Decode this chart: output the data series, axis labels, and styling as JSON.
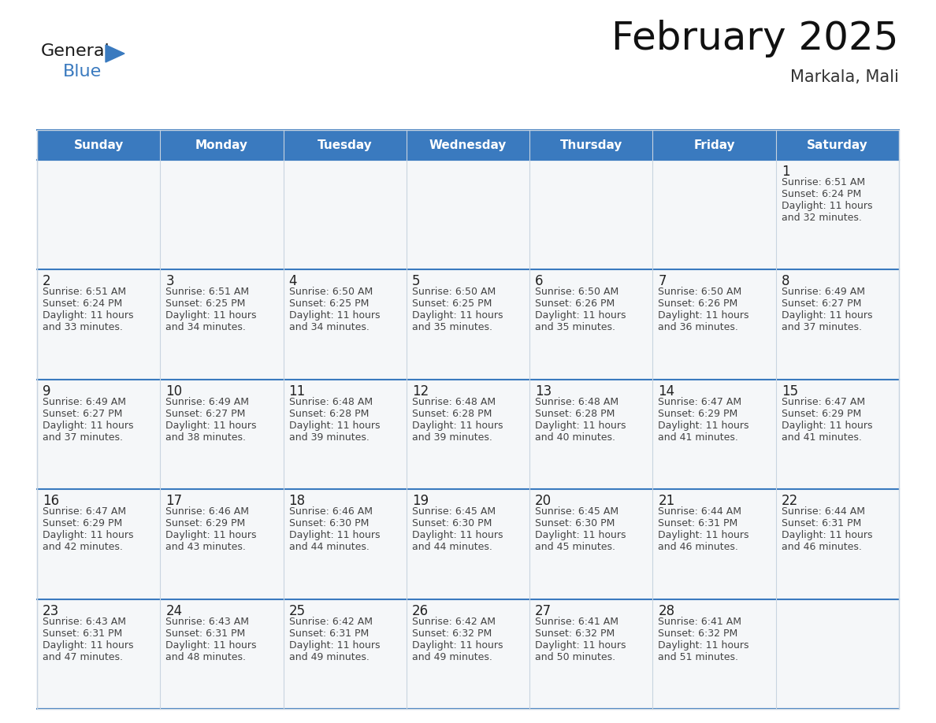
{
  "title": "February 2025",
  "subtitle": "Markala, Mali",
  "header_color": "#3a7abf",
  "header_text_color": "#ffffff",
  "day_names": [
    "Sunday",
    "Monday",
    "Tuesday",
    "Wednesday",
    "Thursday",
    "Friday",
    "Saturday"
  ],
  "cell_bg_even": "#f0f4f8",
  "cell_bg_odd": "#ffffff",
  "border_color": "#3a7abf",
  "vert_line_color": "#c8d4e0",
  "number_color": "#222222",
  "text_color": "#444444",
  "days": [
    {
      "day": 1,
      "col": 6,
      "row": 0,
      "sunrise": "6:51 AM",
      "sunset": "6:24 PM",
      "daylight": "11 hours and 32 minutes."
    },
    {
      "day": 2,
      "col": 0,
      "row": 1,
      "sunrise": "6:51 AM",
      "sunset": "6:24 PM",
      "daylight": "11 hours and 33 minutes."
    },
    {
      "day": 3,
      "col": 1,
      "row": 1,
      "sunrise": "6:51 AM",
      "sunset": "6:25 PM",
      "daylight": "11 hours and 34 minutes."
    },
    {
      "day": 4,
      "col": 2,
      "row": 1,
      "sunrise": "6:50 AM",
      "sunset": "6:25 PM",
      "daylight": "11 hours and 34 minutes."
    },
    {
      "day": 5,
      "col": 3,
      "row": 1,
      "sunrise": "6:50 AM",
      "sunset": "6:25 PM",
      "daylight": "11 hours and 35 minutes."
    },
    {
      "day": 6,
      "col": 4,
      "row": 1,
      "sunrise": "6:50 AM",
      "sunset": "6:26 PM",
      "daylight": "11 hours and 35 minutes."
    },
    {
      "day": 7,
      "col": 5,
      "row": 1,
      "sunrise": "6:50 AM",
      "sunset": "6:26 PM",
      "daylight": "11 hours and 36 minutes."
    },
    {
      "day": 8,
      "col": 6,
      "row": 1,
      "sunrise": "6:49 AM",
      "sunset": "6:27 PM",
      "daylight": "11 hours and 37 minutes."
    },
    {
      "day": 9,
      "col": 0,
      "row": 2,
      "sunrise": "6:49 AM",
      "sunset": "6:27 PM",
      "daylight": "11 hours and 37 minutes."
    },
    {
      "day": 10,
      "col": 1,
      "row": 2,
      "sunrise": "6:49 AM",
      "sunset": "6:27 PM",
      "daylight": "11 hours and 38 minutes."
    },
    {
      "day": 11,
      "col": 2,
      "row": 2,
      "sunrise": "6:48 AM",
      "sunset": "6:28 PM",
      "daylight": "11 hours and 39 minutes."
    },
    {
      "day": 12,
      "col": 3,
      "row": 2,
      "sunrise": "6:48 AM",
      "sunset": "6:28 PM",
      "daylight": "11 hours and 39 minutes."
    },
    {
      "day": 13,
      "col": 4,
      "row": 2,
      "sunrise": "6:48 AM",
      "sunset": "6:28 PM",
      "daylight": "11 hours and 40 minutes."
    },
    {
      "day": 14,
      "col": 5,
      "row": 2,
      "sunrise": "6:47 AM",
      "sunset": "6:29 PM",
      "daylight": "11 hours and 41 minutes."
    },
    {
      "day": 15,
      "col": 6,
      "row": 2,
      "sunrise": "6:47 AM",
      "sunset": "6:29 PM",
      "daylight": "11 hours and 41 minutes."
    },
    {
      "day": 16,
      "col": 0,
      "row": 3,
      "sunrise": "6:47 AM",
      "sunset": "6:29 PM",
      "daylight": "11 hours and 42 minutes."
    },
    {
      "day": 17,
      "col": 1,
      "row": 3,
      "sunrise": "6:46 AM",
      "sunset": "6:29 PM",
      "daylight": "11 hours and 43 minutes."
    },
    {
      "day": 18,
      "col": 2,
      "row": 3,
      "sunrise": "6:46 AM",
      "sunset": "6:30 PM",
      "daylight": "11 hours and 44 minutes."
    },
    {
      "day": 19,
      "col": 3,
      "row": 3,
      "sunrise": "6:45 AM",
      "sunset": "6:30 PM",
      "daylight": "11 hours and 44 minutes."
    },
    {
      "day": 20,
      "col": 4,
      "row": 3,
      "sunrise": "6:45 AM",
      "sunset": "6:30 PM",
      "daylight": "11 hours and 45 minutes."
    },
    {
      "day": 21,
      "col": 5,
      "row": 3,
      "sunrise": "6:44 AM",
      "sunset": "6:31 PM",
      "daylight": "11 hours and 46 minutes."
    },
    {
      "day": 22,
      "col": 6,
      "row": 3,
      "sunrise": "6:44 AM",
      "sunset": "6:31 PM",
      "daylight": "11 hours and 46 minutes."
    },
    {
      "day": 23,
      "col": 0,
      "row": 4,
      "sunrise": "6:43 AM",
      "sunset": "6:31 PM",
      "daylight": "11 hours and 47 minutes."
    },
    {
      "day": 24,
      "col": 1,
      "row": 4,
      "sunrise": "6:43 AM",
      "sunset": "6:31 PM",
      "daylight": "11 hours and 48 minutes."
    },
    {
      "day": 25,
      "col": 2,
      "row": 4,
      "sunrise": "6:42 AM",
      "sunset": "6:31 PM",
      "daylight": "11 hours and 49 minutes."
    },
    {
      "day": 26,
      "col": 3,
      "row": 4,
      "sunrise": "6:42 AM",
      "sunset": "6:32 PM",
      "daylight": "11 hours and 49 minutes."
    },
    {
      "day": 27,
      "col": 4,
      "row": 4,
      "sunrise": "6:41 AM",
      "sunset": "6:32 PM",
      "daylight": "11 hours and 50 minutes."
    },
    {
      "day": 28,
      "col": 5,
      "row": 4,
      "sunrise": "6:41 AM",
      "sunset": "6:32 PM",
      "daylight": "11 hours and 51 minutes."
    }
  ],
  "num_rows": 5,
  "logo_arrow_color": "#3a7abf",
  "title_fontsize": 36,
  "subtitle_fontsize": 15,
  "dayname_fontsize": 11,
  "day_num_fontsize": 12,
  "cell_text_fontsize": 9
}
